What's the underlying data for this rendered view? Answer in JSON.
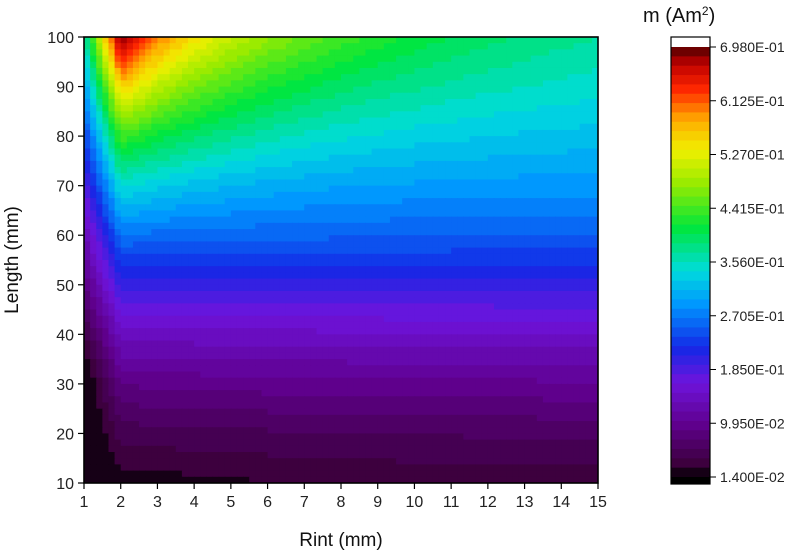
{
  "chart_data": {
    "type": "heatmap",
    "subtype": "filled-contour",
    "xlabel": "Rint (mm)",
    "ylabel": "Length (mm)",
    "x_ticks": [
      "1",
      "2",
      "3",
      "4",
      "5",
      "6",
      "7",
      "8",
      "9",
      "10",
      "11",
      "12",
      "13",
      "14",
      "15"
    ],
    "y_ticks": [
      "10",
      "20",
      "30",
      "40",
      "50",
      "60",
      "70",
      "80",
      "90",
      "100"
    ],
    "xlim": [
      1,
      15
    ],
    "ylim": [
      10,
      100
    ],
    "colorbar": {
      "title": "m (Am",
      "title_sup": "2",
      "title_end": ")",
      "ticks": [
        "6.980E-01",
        "6.125E-01",
        "5.270E-01",
        "4.415E-01",
        "3.560E-01",
        "2.705E-01",
        "1.850E-01",
        "9.950E-02",
        "1.400E-02"
      ],
      "range": [
        0.014,
        0.698
      ]
    },
    "grid": false,
    "z_description": "estimated magnetic moment grid (Am^2) over Rint (mm) x Length (mm)",
    "x": [
      1,
      2,
      3,
      4,
      5,
      6,
      7,
      8,
      9,
      10,
      11,
      12,
      13,
      14,
      15
    ],
    "y": [
      10,
      20,
      30,
      40,
      50,
      60,
      70,
      80,
      90,
      100
    ],
    "z": [
      [
        0.0,
        0.02,
        0.022,
        0.024,
        0.026,
        0.028,
        0.03,
        0.03,
        0.031,
        0.032,
        0.033,
        0.034,
        0.034,
        0.035,
        0.035
      ],
      [
        0.0,
        0.05,
        0.052,
        0.054,
        0.056,
        0.056,
        0.058,
        0.058,
        0.059,
        0.06,
        0.06,
        0.061,
        0.061,
        0.062,
        0.062
      ],
      [
        0.0,
        0.09,
        0.092,
        0.094,
        0.095,
        0.096,
        0.097,
        0.097,
        0.098,
        0.099,
        0.099,
        0.1,
        0.1,
        0.101,
        0.101
      ],
      [
        0.04,
        0.14,
        0.14,
        0.142,
        0.143,
        0.144,
        0.144,
        0.145,
        0.145,
        0.146,
        0.146,
        0.146,
        0.147,
        0.147,
        0.147
      ],
      [
        0.085,
        0.2,
        0.198,
        0.2,
        0.2,
        0.2,
        0.201,
        0.201,
        0.201,
        0.202,
        0.202,
        0.202,
        0.202,
        0.202,
        0.202
      ],
      [
        0.13,
        0.265,
        0.262,
        0.26,
        0.258,
        0.257,
        0.256,
        0.255,
        0.254,
        0.253,
        0.253,
        0.252,
        0.252,
        0.252,
        0.252
      ],
      [
        0.18,
        0.345,
        0.33,
        0.32,
        0.312,
        0.306,
        0.302,
        0.298,
        0.296,
        0.294,
        0.292,
        0.291,
        0.29,
        0.289,
        0.289
      ],
      [
        0.23,
        0.44,
        0.41,
        0.39,
        0.375,
        0.362,
        0.352,
        0.345,
        0.339,
        0.334,
        0.33,
        0.327,
        0.324,
        0.322,
        0.32
      ],
      [
        0.29,
        0.56,
        0.5,
        0.465,
        0.44,
        0.42,
        0.405,
        0.392,
        0.382,
        0.374,
        0.367,
        0.361,
        0.356,
        0.352,
        0.348
      ],
      [
        0.36,
        0.698,
        0.6,
        0.545,
        0.508,
        0.48,
        0.458,
        0.44,
        0.425,
        0.412,
        0.401,
        0.392,
        0.384,
        0.377,
        0.371
      ]
    ]
  }
}
